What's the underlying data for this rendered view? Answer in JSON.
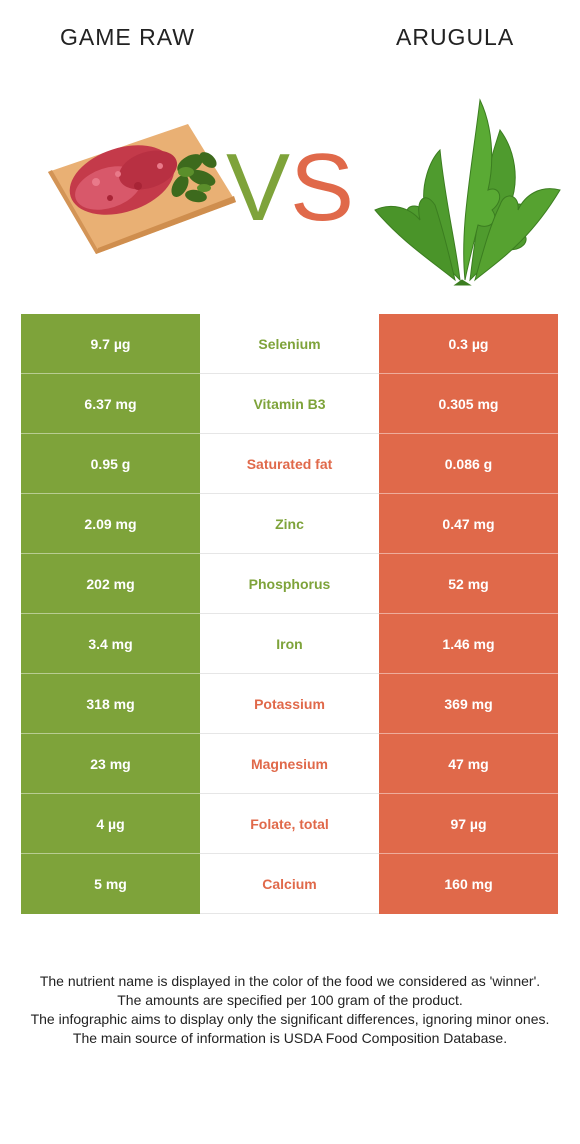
{
  "header": {
    "left_title": "GAME RAW",
    "right_title": "ARUGULA",
    "vs_text": "VS"
  },
  "colors": {
    "left_winner": "#7ea33a",
    "right_winner": "#e0694a"
  },
  "icons": {
    "left_image": "raw-meat-on-board-icon",
    "right_image": "arugula-leaves-icon"
  },
  "rows": [
    {
      "left": "9.7 µg",
      "nutrient": "Selenium",
      "right": "0.3 µg",
      "winner": "left"
    },
    {
      "left": "6.37 mg",
      "nutrient": "Vitamin B3",
      "right": "0.305 mg",
      "winner": "left"
    },
    {
      "left": "0.95 g",
      "nutrient": "Saturated fat",
      "right": "0.086 g",
      "winner": "right"
    },
    {
      "left": "2.09 mg",
      "nutrient": "Zinc",
      "right": "0.47 mg",
      "winner": "left"
    },
    {
      "left": "202 mg",
      "nutrient": "Phosphorus",
      "right": "52 mg",
      "winner": "left"
    },
    {
      "left": "3.4 mg",
      "nutrient": "Iron",
      "right": "1.46 mg",
      "winner": "left"
    },
    {
      "left": "318 mg",
      "nutrient": "Potassium",
      "right": "369 mg",
      "winner": "right"
    },
    {
      "left": "23 mg",
      "nutrient": "Magnesium",
      "right": "47 mg",
      "winner": "right"
    },
    {
      "left": "4 µg",
      "nutrient": "Folate, total",
      "right": "97 µg",
      "winner": "right"
    },
    {
      "left": "5 mg",
      "nutrient": "Calcium",
      "right": "160 mg",
      "winner": "right"
    }
  ],
  "footer": {
    "line1": "The nutrient name is displayed in the color of the food we considered as 'winner'.",
    "line2": "The amounts are specified per 100 gram of the product.",
    "line3": "The infographic aims to display only the significant differences, ignoring minor ones.",
    "line4": "The main source of information is USDA Food Composition Database."
  }
}
